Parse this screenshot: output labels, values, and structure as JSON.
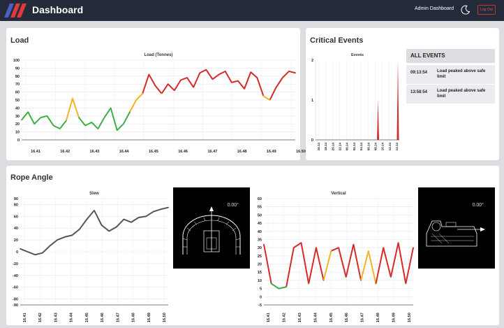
{
  "header": {
    "app_title": "Dashboard",
    "admin_link": "Admin Dashboard",
    "logout_label": "Log Out",
    "colors": {
      "bar": "#232a3a",
      "logo_red": "#e03a3e",
      "logo_blue": "#4a5fc1"
    }
  },
  "load_panel": {
    "title": "Load"
  },
  "events_panel": {
    "title": "Critical Events",
    "list_header": "ALL EVENTS",
    "events": [
      {
        "time": "09:13:54",
        "message": "Load peaked above safe limit"
      },
      {
        "time": "13:58:54",
        "message": "Load peaked above safe limit"
      }
    ]
  },
  "rope_panel": {
    "title": "Rope Angle",
    "slew_angle": "0.00°",
    "vertical_angle": "0.00°"
  },
  "chart_data": [
    {
      "id": "load",
      "type": "line",
      "title": "Load (Tonnes)",
      "ylim": [
        0,
        100
      ],
      "yticks": [
        0,
        10,
        20,
        30,
        40,
        50,
        60,
        70,
        80,
        90,
        100
      ],
      "xticks": [
        "16.41",
        "16.42",
        "16.43",
        "16.44",
        "16.45",
        "16.46",
        "16.47",
        "16.48",
        "16.49",
        "16.50"
      ],
      "thresholds": {
        "warn": 50,
        "danger": 60
      },
      "colors": {
        "ok": "#3cb043",
        "warn": "#f5b323",
        "danger": "#d62a2a"
      },
      "grid": true,
      "x": [
        0,
        0.5,
        1,
        1.5,
        2,
        2.5,
        3,
        3.5,
        4,
        4.5,
        5,
        5.5,
        6,
        6.5,
        7,
        7.5,
        8,
        8.5,
        9,
        9.5,
        10
      ],
      "y": [
        25,
        35,
        20,
        28,
        30,
        18,
        14,
        24,
        52,
        28,
        18,
        22,
        14,
        28,
        40,
        12,
        20,
        35,
        50,
        58,
        82
      ],
      "x2": [
        10.5,
        11,
        11.5,
        12,
        12.5,
        13,
        13.5,
        14,
        14.5,
        15,
        15.5,
        16,
        16.5,
        17,
        17.5,
        18,
        18.5,
        19,
        19.5,
        20,
        20.5,
        21,
        21.5
      ],
      "y2": [
        68,
        58,
        70,
        62,
        75,
        78,
        66,
        84,
        88,
        76,
        82,
        86,
        72,
        74,
        64,
        85,
        78,
        55,
        50,
        66,
        78,
        86,
        84
      ]
    },
    {
      "id": "events",
      "type": "bar",
      "title": "Events",
      "ylim": [
        0,
        2
      ],
      "yticks": [
        0,
        1,
        2
      ],
      "xticks": [
        "16.14",
        "18.14",
        "20.14",
        "22.14",
        "00.14",
        "02.14",
        "04.14",
        "06.14",
        "08.14",
        "10.14",
        "12.14",
        "14.14"
      ],
      "spikes": [
        {
          "x": 8.4,
          "value": 1
        },
        {
          "x": 11.2,
          "value": 2
        }
      ],
      "colors": {
        "spike": "#d62a2a"
      }
    },
    {
      "id": "slew",
      "type": "line",
      "title": "Slew",
      "ylim": [
        -90,
        90
      ],
      "yticks": [
        -90,
        -80,
        -60,
        -40,
        -20,
        0,
        20,
        40,
        60,
        80,
        90
      ],
      "xticks": [
        "16.41",
        "16.42",
        "16.43",
        "16.44",
        "16.45",
        "16.46",
        "16.47",
        "16.48",
        "16.49",
        "16.50"
      ],
      "colors": {
        "line": "#555555",
        "low": "#3cb043"
      },
      "grid": true,
      "x": [
        0,
        0.5,
        1,
        1.5,
        2,
        2.5,
        3,
        3.5,
        4,
        4.5,
        5,
        5.5,
        6,
        6.5,
        7,
        7.5,
        8,
        8.5,
        9,
        9.5,
        10
      ],
      "y": [
        5,
        0,
        -5,
        -2,
        10,
        20,
        25,
        28,
        38,
        55,
        70,
        45,
        35,
        42,
        55,
        50,
        58,
        60,
        68,
        72,
        75
      ]
    },
    {
      "id": "vertical",
      "type": "line",
      "title": "Vertical",
      "ylim": [
        -5,
        60
      ],
      "yticks": [
        -5,
        0,
        5,
        10,
        15,
        20,
        25,
        30,
        35,
        40,
        45,
        50,
        55,
        60
      ],
      "xticks": [
        "16.41",
        "16.42",
        "16.43",
        "16.44",
        "16.45",
        "16.46",
        "16.47",
        "16.48",
        "16.49",
        "16.50"
      ],
      "thresholds": {
        "warn": 25,
        "danger": 30
      },
      "colors": {
        "ok": "#3cb043",
        "warn": "#f5b323",
        "danger": "#d62a2a"
      },
      "grid": true,
      "x": [
        0,
        0.5,
        1,
        1.5,
        2,
        2.5,
        3,
        3.5,
        4,
        4.5,
        5,
        5.5,
        6,
        6.5,
        7,
        7.5,
        8,
        8.5,
        9,
        9.5,
        10
      ],
      "y": [
        32,
        8,
        5,
        6,
        30,
        33,
        8,
        30,
        10,
        28,
        30,
        12,
        32,
        10,
        28,
        8,
        30,
        12,
        33,
        8,
        30
      ]
    }
  ]
}
